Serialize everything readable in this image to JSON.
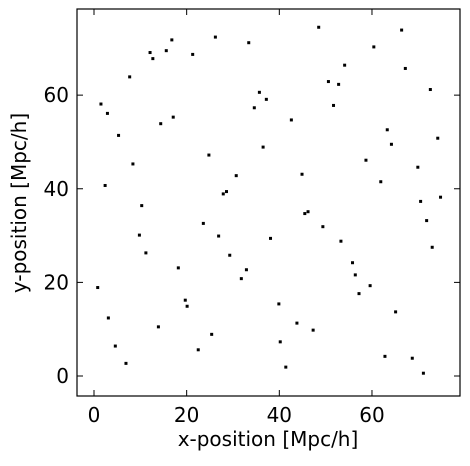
{
  "chart_data": {
    "type": "scatter",
    "xlabel": "x-position [Mpc/h]",
    "ylabel": "y-position [Mpc/h]",
    "xlim": [
      -3.67,
      79
    ],
    "ylim": [
      -4.27,
      78.4
    ],
    "xticks": [
      0,
      20,
      40,
      60
    ],
    "yticks": [
      0,
      20,
      40,
      60
    ],
    "color": "#000000",
    "x": [
      3.1,
      8.4,
      12.7,
      18.2,
      22.5,
      27.9,
      33.4,
      38.1,
      42.6,
      47.3,
      52.8,
      57.2,
      61.9,
      66.4,
      71.8,
      74.2,
      1.5,
      6.9,
      10.3,
      15.6,
      20.1,
      24.8,
      29.3,
      35.7,
      40.2,
      44.9,
      49.4,
      54.1,
      59.6,
      63.3,
      68.7,
      73.0,
      2.4,
      7.7,
      13.9,
      17.1,
      23.6,
      26.2,
      31.8,
      36.5,
      41.4,
      46.2,
      51.7,
      55.8,
      60.4,
      65.1,
      69.9,
      72.6,
      4.6,
      9.8,
      14.4,
      19.7,
      21.3,
      28.6,
      32.9,
      37.2,
      43.8,
      48.5,
      53.3,
      58.7,
      62.8,
      67.2,
      70.5,
      0.8,
      5.3,
      11.2,
      16.8,
      25.4,
      30.7,
      34.6,
      39.9,
      45.5,
      50.6,
      56.4,
      64.2,
      71.1,
      74.8,
      2.9,
      12.1,
      26.9
    ],
    "y": [
      12.4,
      45.3,
      67.8,
      23.1,
      5.6,
      38.9,
      71.2,
      29.4,
      54.7,
      9.8,
      62.3,
      17.6,
      41.5,
      73.9,
      33.2,
      50.8,
      58.1,
      2.7,
      36.4,
      69.5,
      14.9,
      47.2,
      25.8,
      60.6,
      7.3,
      43.1,
      31.9,
      66.4,
      19.3,
      52.6,
      3.8,
      27.5,
      40.7,
      63.9,
      10.5,
      55.3,
      32.6,
      72.4,
      20.8,
      48.9,
      1.9,
      35.1,
      57.8,
      24.2,
      70.3,
      13.7,
      44.6,
      61.2,
      6.4,
      30.1,
      53.9,
      16.2,
      68.7,
      39.4,
      22.7,
      59.1,
      11.3,
      74.5,
      28.8,
      46.1,
      4.2,
      65.7,
      37.3,
      18.9,
      51.4,
      26.3,
      71.8,
      8.9,
      42.8,
      57.3,
      15.4,
      34.7,
      62.9,
      21.6,
      49.5,
      0.6,
      38.2,
      56.1,
      69.1,
      29.9
    ]
  }
}
